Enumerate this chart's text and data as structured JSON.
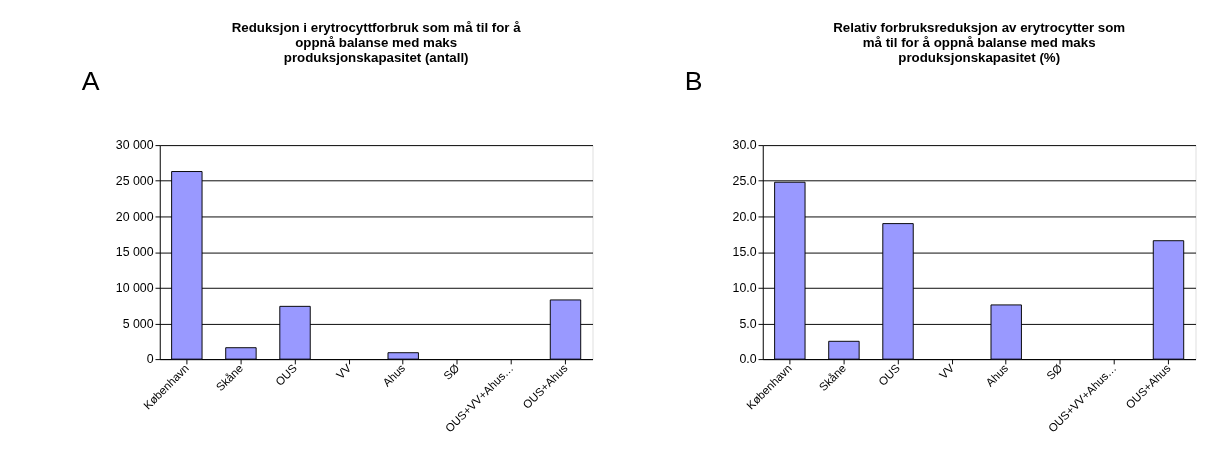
{
  "chart_data": [
    {
      "type": "bar",
      "title": "Reduksjon i erytrocyttforbruk som må til for å\noppnå balanse med maks\nproduksjonskapasitet  (antall)",
      "annotations": [
        "A"
      ],
      "categories": [
        "København",
        "Skåne",
        "OUS",
        "VV",
        "Ahus",
        "SØ",
        "OUS+VV+Ahus…",
        "OUS+Ahus"
      ],
      "values": [
        26300,
        1600,
        7400,
        0,
        900,
        0,
        0,
        8300
      ],
      "color": "#9999ff",
      "ylim": [
        0,
        30000
      ],
      "yticks": [
        {
          "value": 0,
          "label": "0"
        },
        {
          "value": 5000,
          "label": "5 000"
        },
        {
          "value": 10000,
          "label": "10 000"
        },
        {
          "value": 15000,
          "label": "15 000"
        },
        {
          "value": 20000,
          "label": "20 000"
        },
        {
          "value": 25000,
          "label": "25 000"
        },
        {
          "value": 30000,
          "label": "30 000"
        }
      ],
      "grid": "y"
    },
    {
      "type": "bar",
      "title": "Relativ forbruksreduksjon av erytrocytter som\nmå til for å oppnå balanse med maks\nproduksjonskapasitet (%)",
      "annotations": [
        "B"
      ],
      "categories": [
        "København",
        "Skåne",
        "OUS",
        "VV",
        "Ahus",
        "SØ",
        "OUS+VV+Ahus…",
        "OUS+Ahus"
      ],
      "values": [
        24.8,
        2.5,
        19.0,
        0,
        7.6,
        0,
        0,
        16.6
      ],
      "color": "#9999ff",
      "ylim": [
        0,
        30
      ],
      "yticks": [
        {
          "value": 0,
          "label": "0.0"
        },
        {
          "value": 5,
          "label": "5.0"
        },
        {
          "value": 10,
          "label": "10.0"
        },
        {
          "value": 15,
          "label": "15.0"
        },
        {
          "value": 20,
          "label": "20.0"
        },
        {
          "value": 25,
          "label": "25.0"
        },
        {
          "value": 30,
          "label": "30.0"
        }
      ],
      "grid": "y"
    }
  ]
}
